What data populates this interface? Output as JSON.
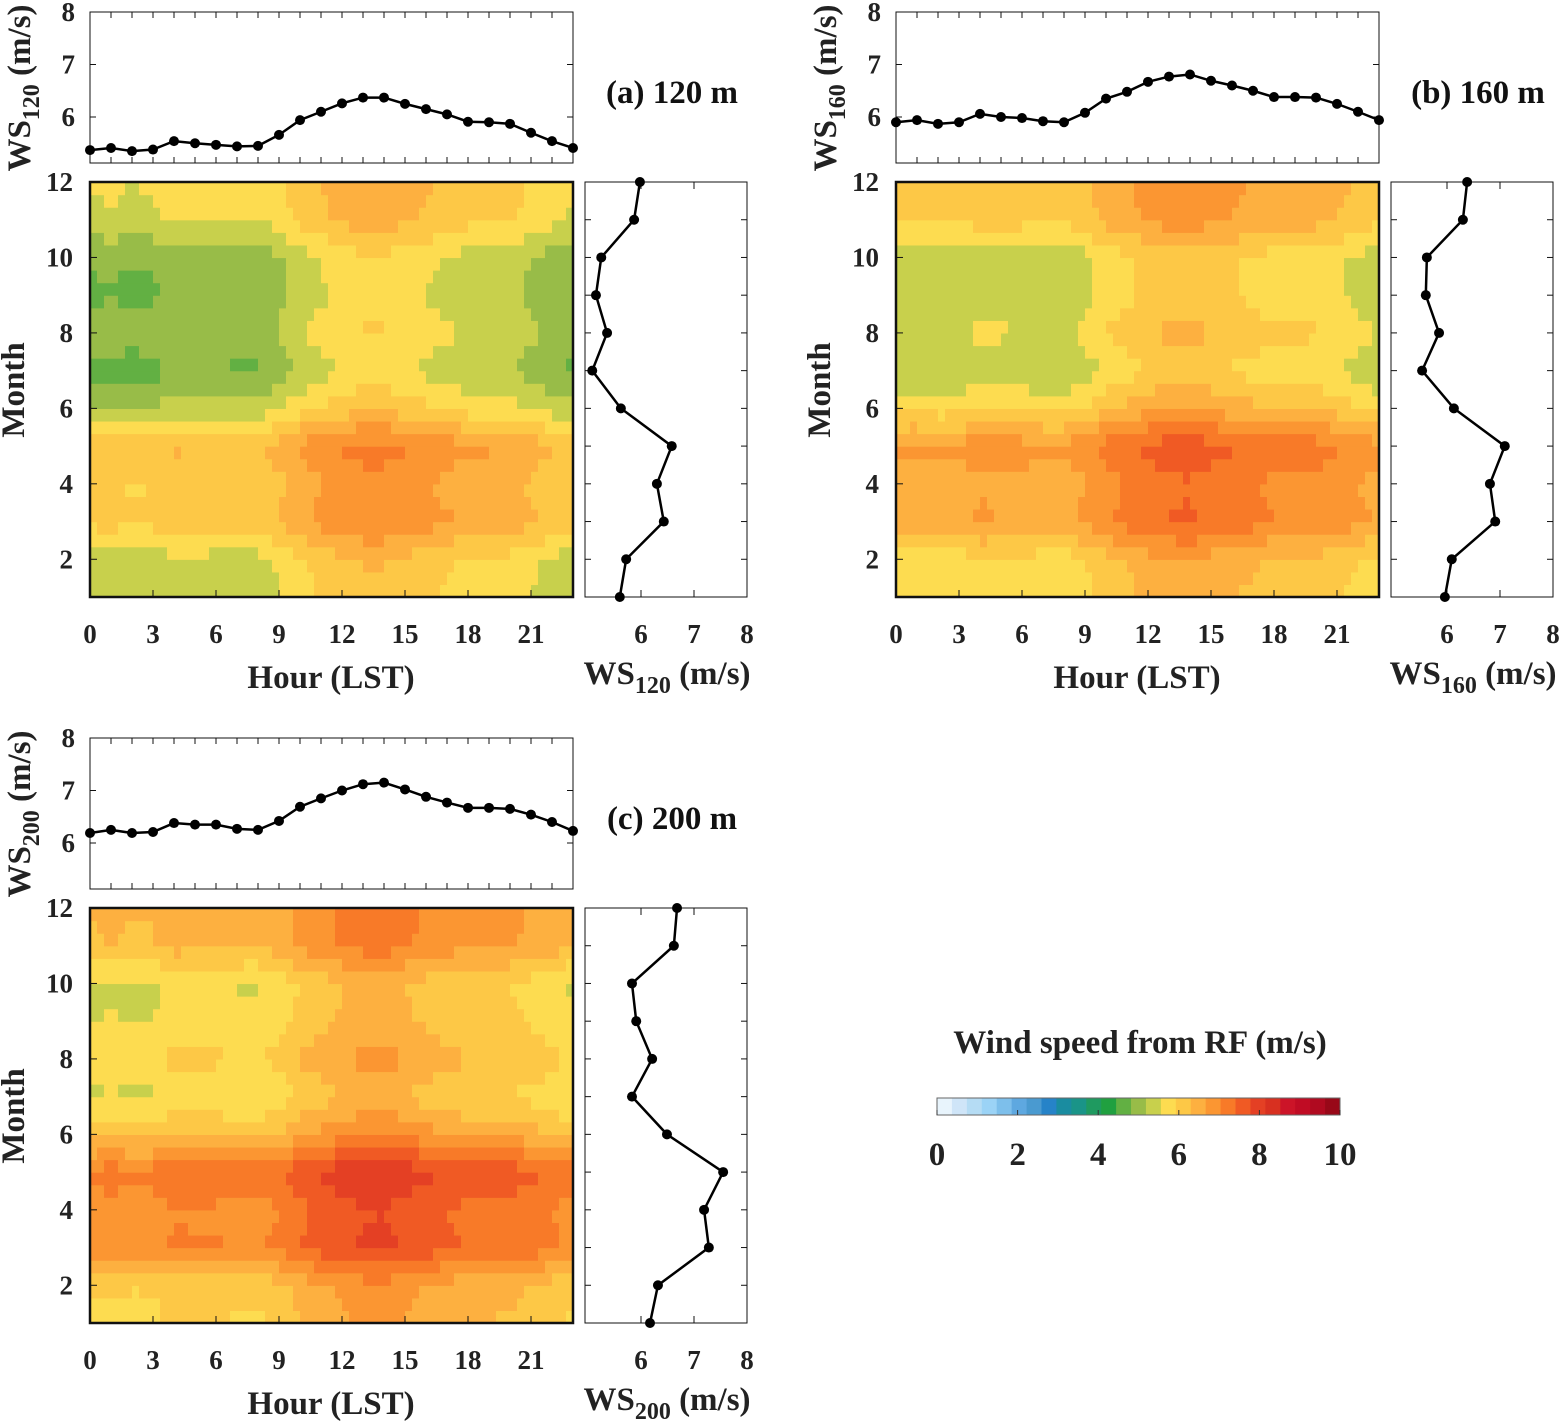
{
  "chart_data": {
    "type": "heatmap",
    "title": "Wind speed from RF (m/s)",
    "xlabel": "Hour (LST)",
    "ylabel": "Month",
    "hour_ticks": [
      "0",
      "3",
      "6",
      "9",
      "12",
      "15",
      "18",
      "21"
    ],
    "month_ticks": [
      "2",
      "4",
      "6",
      "8",
      "10",
      "12"
    ],
    "ws_ticks": [
      "6",
      "7",
      "8"
    ],
    "ws_unit": "(m/s)",
    "ws_prefix": "WS",
    "colorbar": {
      "range": [
        0,
        10
      ],
      "ticks": [
        "0",
        "2",
        "4",
        "6",
        "8",
        "10"
      ],
      "colors": [
        "#e8f4fc",
        "#cfe5f8",
        "#b5dcf4",
        "#9bd3f6",
        "#7dbfeb",
        "#5ea8e0",
        "#4a9ad0",
        "#2683c8",
        "#1a8ca0",
        "#1a9488",
        "#1f9a60",
        "#20a040",
        "#62b043",
        "#98bc48",
        "#c8d04c",
        "#fddc50",
        "#fdc846",
        "#fdb040",
        "#fb9632",
        "#f87a28",
        "#f05a24",
        "#e44024",
        "#d83020",
        "#cc1428",
        "#c00c24",
        "#b00a20",
        "#980818"
      ]
    },
    "panels": [
      {
        "label": "(a) 120 m",
        "height_sub": "120",
        "hours": [
          0,
          1,
          2,
          3,
          4,
          5,
          6,
          7,
          8,
          9,
          10,
          11,
          12,
          13,
          14,
          15,
          16,
          17,
          18,
          19,
          20,
          21,
          22,
          23
        ],
        "diurnal_ws": [
          5.37,
          5.41,
          5.35,
          5.38,
          5.54,
          5.5,
          5.47,
          5.44,
          5.45,
          5.66,
          5.94,
          6.1,
          6.26,
          6.37,
          6.37,
          6.25,
          6.15,
          6.05,
          5.91,
          5.9,
          5.87,
          5.7,
          5.54,
          5.41
        ],
        "months": [
          1,
          2,
          3,
          4,
          5,
          6,
          7,
          8,
          9,
          10,
          11,
          12
        ],
        "monthly_ws": [
          5.6,
          5.72,
          6.43,
          6.3,
          6.58,
          5.62,
          5.08,
          5.36,
          5.15,
          5.25,
          5.87,
          5.98
        ]
      },
      {
        "label": "(b) 160 m",
        "height_sub": "160",
        "hours": [
          0,
          1,
          2,
          3,
          4,
          5,
          6,
          7,
          8,
          9,
          10,
          11,
          12,
          13,
          14,
          15,
          16,
          17,
          18,
          19,
          20,
          21,
          22,
          23
        ],
        "diurnal_ws": [
          5.9,
          5.94,
          5.87,
          5.9,
          6.06,
          6.0,
          5.98,
          5.92,
          5.9,
          6.08,
          6.35,
          6.48,
          6.67,
          6.77,
          6.81,
          6.69,
          6.6,
          6.5,
          6.38,
          6.38,
          6.37,
          6.25,
          6.1,
          5.94
        ],
        "months": [
          1,
          2,
          3,
          4,
          5,
          6,
          7,
          8,
          9,
          10,
          11,
          12
        ],
        "monthly_ws": [
          5.96,
          6.09,
          6.91,
          6.81,
          7.09,
          6.13,
          5.53,
          5.85,
          5.6,
          5.62,
          6.3,
          6.38
        ]
      },
      {
        "label": "(c) 200 m",
        "height_sub": "200",
        "hours": [
          0,
          1,
          2,
          3,
          4,
          5,
          6,
          7,
          8,
          9,
          10,
          11,
          12,
          13,
          14,
          15,
          16,
          17,
          18,
          19,
          20,
          21,
          22,
          23
        ],
        "diurnal_ws": [
          6.19,
          6.25,
          6.19,
          6.21,
          6.38,
          6.35,
          6.35,
          6.27,
          6.25,
          6.42,
          6.69,
          6.85,
          7.0,
          7.12,
          7.15,
          7.02,
          6.88,
          6.77,
          6.67,
          6.67,
          6.65,
          6.54,
          6.4,
          6.23
        ],
        "months": [
          1,
          2,
          3,
          4,
          5,
          6,
          7,
          8,
          9,
          10,
          11,
          12
        ],
        "monthly_ws": [
          6.17,
          6.32,
          7.28,
          7.19,
          7.55,
          6.49,
          5.83,
          6.21,
          5.91,
          5.83,
          6.62,
          6.68
        ]
      }
    ]
  }
}
